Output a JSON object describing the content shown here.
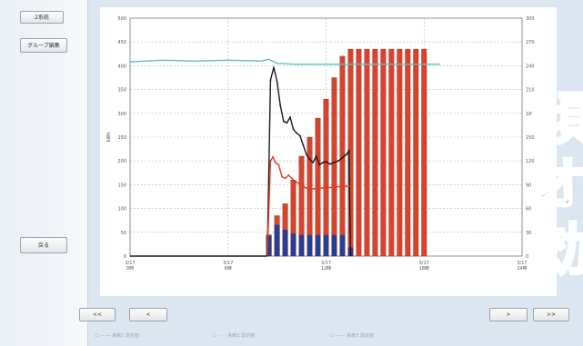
{
  "left_panel": {
    "top_button": "2系統",
    "group_button": "グループ編集",
    "back_button": "戻る"
  },
  "nav": {
    "first_button": "<<",
    "prev_button": "<",
    "next_button": ">",
    "last_button": ">>"
  },
  "legend": [
    "系統1 測定値",
    "系統2 測定値",
    "系統3 測定値"
  ],
  "overlay_chars": [
    "傾",
    "オ",
    "効"
  ],
  "colors": {
    "bar_red": "#d8432c",
    "bar_blue": "#243e9c",
    "line_cyan": "#5ac2c4",
    "line_red": "#e23a1e",
    "line_black": "#1a1a1a",
    "overlay_text": "#1c45a8",
    "background": "#dbe6f1"
  },
  "chart_data": {
    "type": "bar",
    "ylabel_left": "kWh",
    "ylabel_right": "℃",
    "ylim": [
      0,
      500
    ],
    "y2lim": [
      0,
      300
    ],
    "yticks": [
      "0",
      "50",
      "100",
      "150",
      "200",
      "250",
      "300",
      "350",
      "400",
      "450",
      "500"
    ],
    "y2ticks": [
      "0",
      "30",
      "60",
      "90",
      "120",
      "150",
      "180",
      "210",
      "240",
      "270",
      "300"
    ],
    "xlim": [
      0,
      48
    ],
    "xticks": [
      {
        "x": 0,
        "label": "3/17\n0時"
      },
      {
        "x": 12,
        "label": "3/17\n6時"
      },
      {
        "x": 24,
        "label": "3/17\n12時"
      },
      {
        "x": 36,
        "label": "3/17\n18時"
      },
      {
        "x": 48,
        "label": "3/17\n24時"
      }
    ],
    "grid": true,
    "series": [
      {
        "kind": "bar",
        "color": "#d8432c",
        "data": [
          [
            17,
            45
          ],
          [
            18,
            85
          ],
          [
            19,
            110
          ],
          [
            20,
            160
          ],
          [
            21,
            210
          ],
          [
            22,
            250
          ],
          [
            23,
            290
          ],
          [
            24,
            330
          ],
          [
            25,
            375
          ],
          [
            26,
            420
          ],
          [
            27,
            435
          ],
          [
            28,
            435
          ],
          [
            29,
            435
          ],
          [
            30,
            435
          ],
          [
            31,
            435
          ],
          [
            32,
            435
          ],
          [
            33,
            435
          ],
          [
            34,
            435
          ],
          [
            35,
            435
          ],
          [
            36,
            435
          ]
        ]
      },
      {
        "kind": "bar",
        "color": "#243e9c",
        "data": [
          [
            17,
            42
          ],
          [
            18,
            65
          ],
          [
            19,
            55
          ],
          [
            20,
            47
          ],
          [
            21,
            44
          ],
          [
            22,
            44
          ],
          [
            23,
            44
          ],
          [
            24,
            44
          ],
          [
            25,
            44
          ],
          [
            26,
            44
          ],
          [
            27,
            18
          ]
        ]
      },
      {
        "kind": "line",
        "axis": "right",
        "color": "#5ac2c4",
        "data": [
          [
            0,
            245
          ],
          [
            4,
            247
          ],
          [
            8,
            246
          ],
          [
            12,
            247
          ],
          [
            16,
            246
          ],
          [
            17,
            248
          ],
          [
            18,
            243
          ],
          [
            20,
            242
          ],
          [
            24,
            242
          ],
          [
            28,
            242
          ],
          [
            32,
            242
          ],
          [
            36,
            242
          ],
          [
            38,
            242
          ]
        ]
      },
      {
        "kind": "line",
        "axis": "right",
        "color": "#1a1a1a",
        "data": [
          [
            16.8,
            0
          ],
          [
            17.2,
            222
          ],
          [
            17.6,
            238
          ],
          [
            18,
            220
          ],
          [
            18.4,
            190
          ],
          [
            18.8,
            170
          ],
          [
            19.2,
            168
          ],
          [
            19.6,
            175
          ],
          [
            20,
            160
          ],
          [
            20.4,
            155
          ],
          [
            20.8,
            152
          ],
          [
            21.2,
            140
          ],
          [
            21.6,
            128
          ],
          [
            22,
            122
          ],
          [
            22.4,
            118
          ],
          [
            22.8,
            126
          ],
          [
            23.2,
            115
          ],
          [
            23.6,
            118
          ],
          [
            24,
            119
          ],
          [
            24.5,
            116
          ],
          [
            25,
            118
          ],
          [
            25.5,
            120
          ],
          [
            26,
            124
          ],
          [
            26.5,
            128
          ],
          [
            26.8,
            133
          ],
          [
            27,
            0
          ]
        ]
      },
      {
        "kind": "line",
        "axis": "right",
        "color": "#e23a1e",
        "data": [
          [
            16.8,
            0
          ],
          [
            17.2,
            120
          ],
          [
            17.5,
            125
          ],
          [
            17.8,
            118
          ],
          [
            18.2,
            115
          ],
          [
            18.6,
            100
          ],
          [
            19,
            98
          ],
          [
            19.4,
            102
          ],
          [
            19.8,
            98
          ],
          [
            20.2,
            94
          ],
          [
            20.6,
            92
          ],
          [
            21,
            90
          ],
          [
            21.5,
            86
          ],
          [
            22,
            84
          ],
          [
            22.5,
            85
          ],
          [
            23,
            84
          ],
          [
            23.5,
            86
          ],
          [
            24,
            86
          ],
          [
            25,
            87
          ],
          [
            26,
            88
          ],
          [
            26.5,
            88
          ],
          [
            27,
            88
          ]
        ]
      },
      {
        "kind": "line",
        "color": "#1a1a1a",
        "data": [
          [
            0,
            0
          ],
          [
            16.8,
            0
          ]
        ]
      }
    ]
  }
}
